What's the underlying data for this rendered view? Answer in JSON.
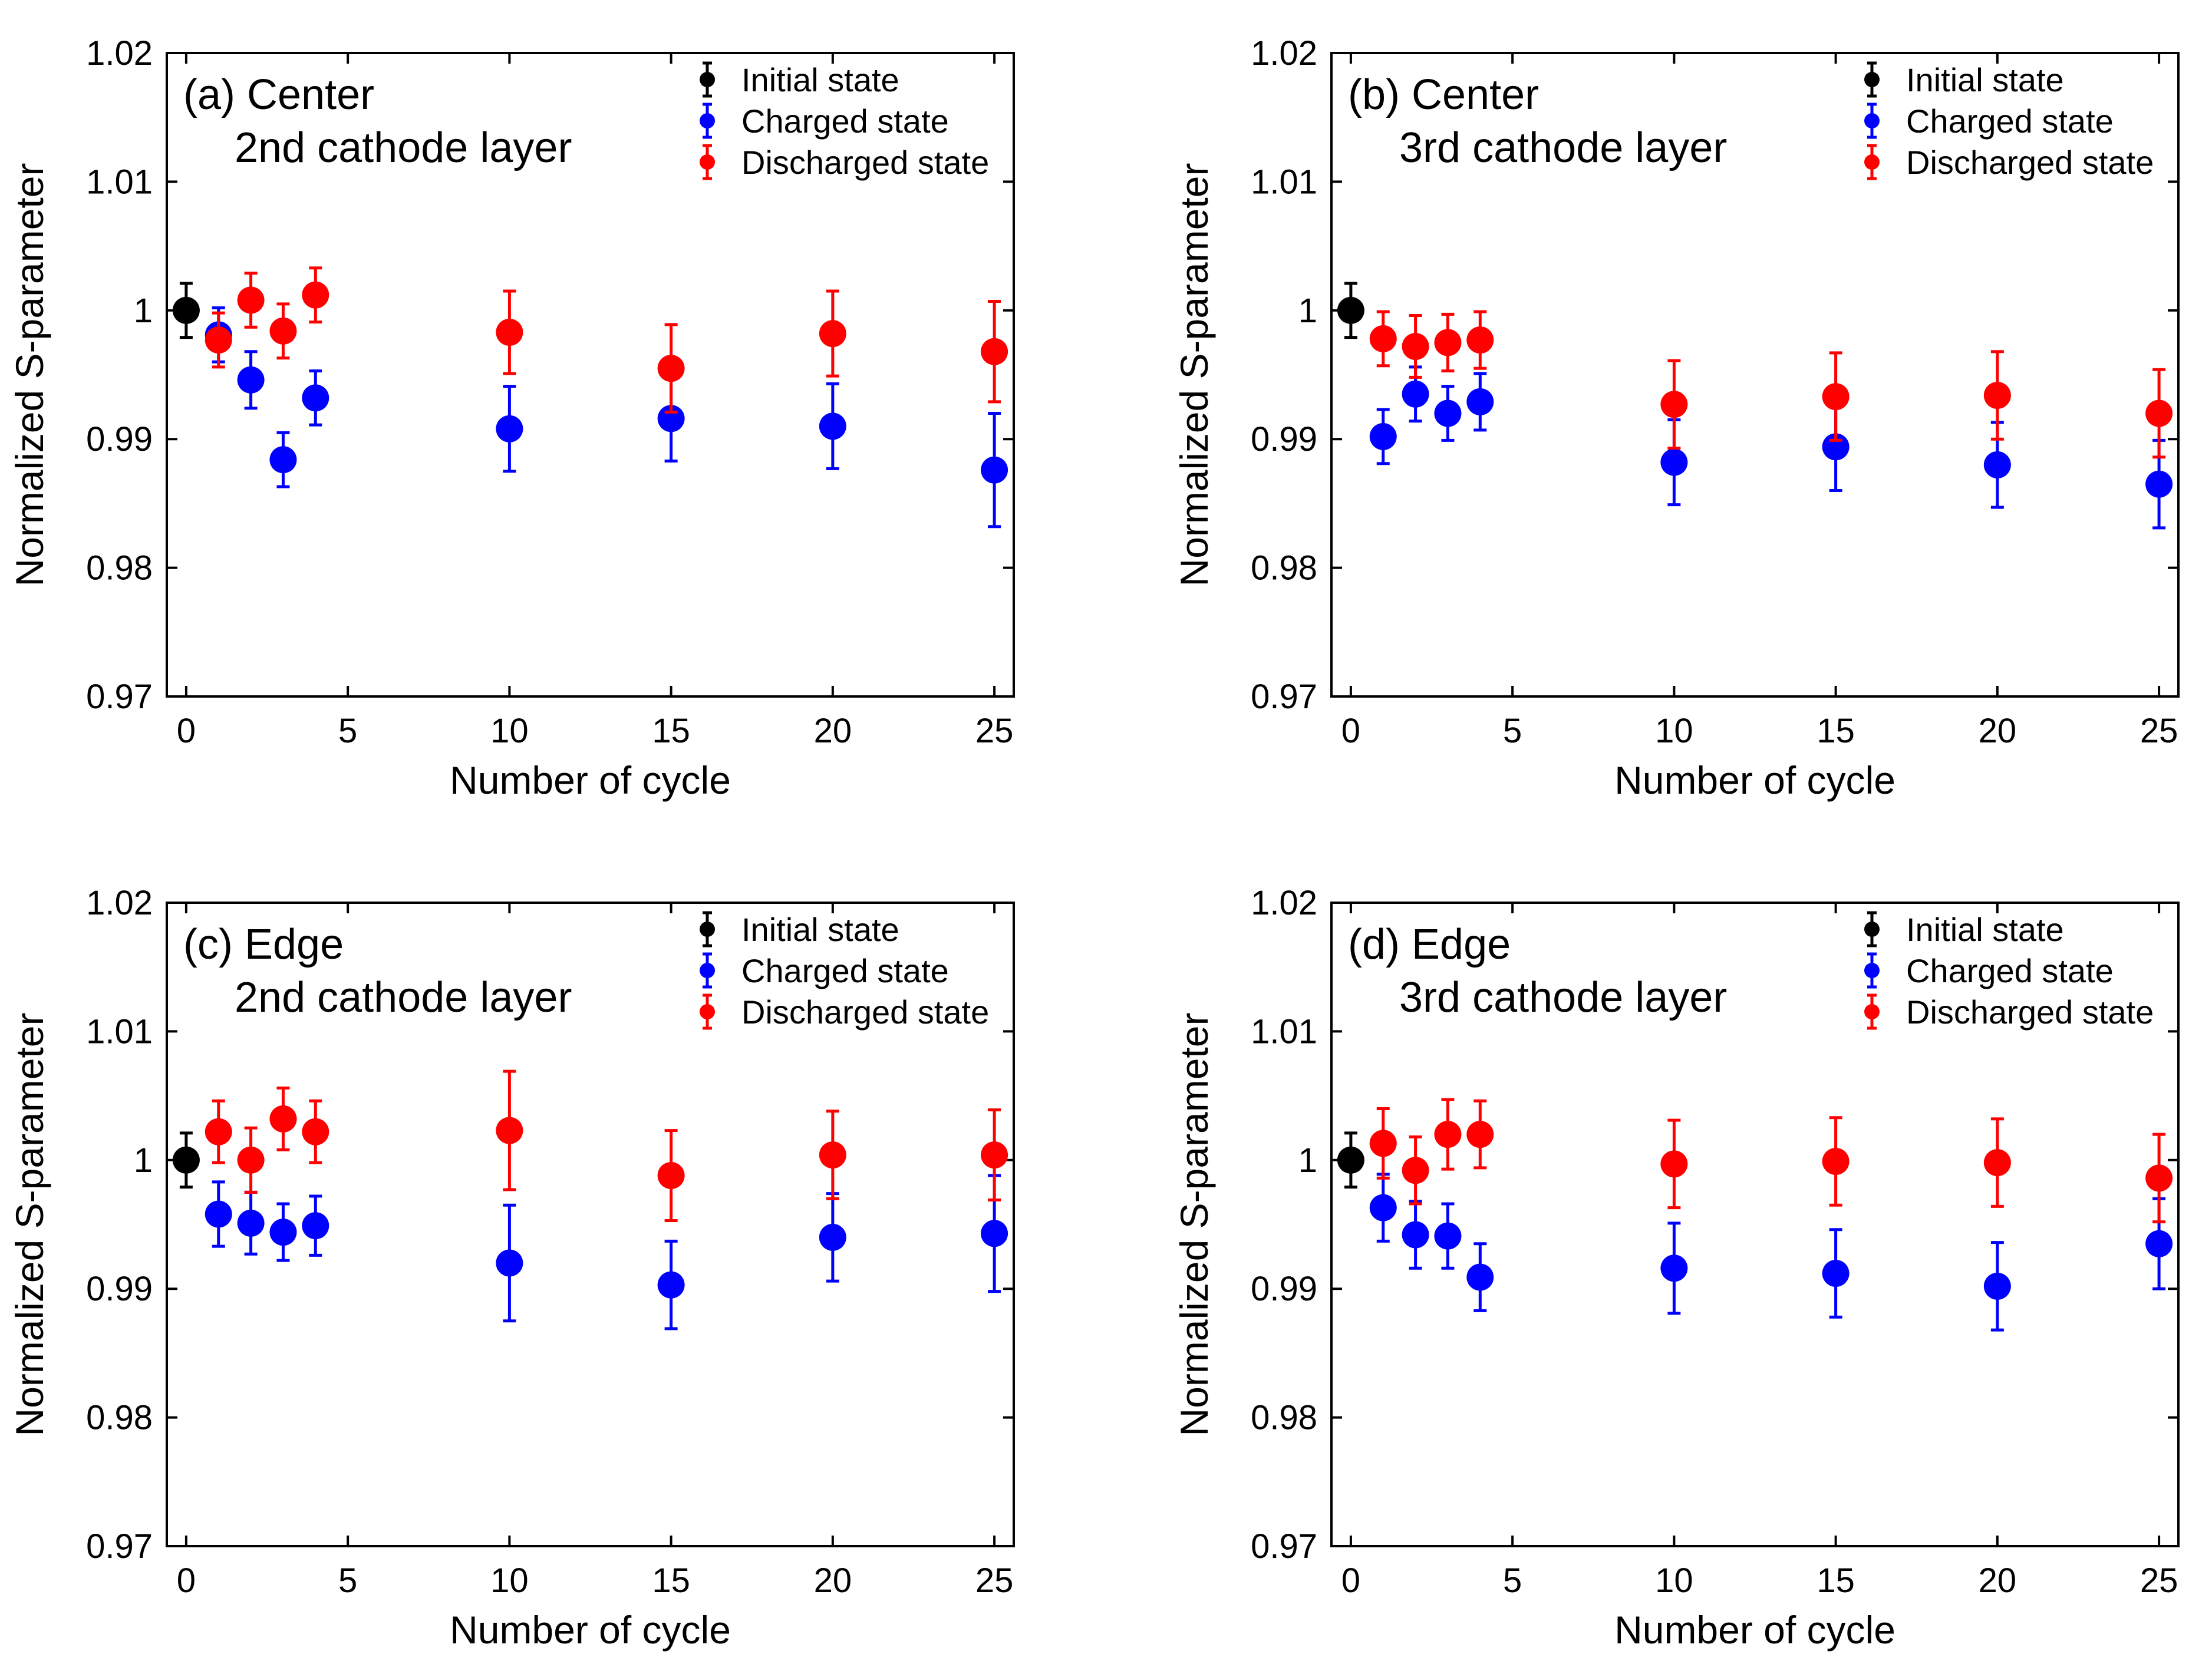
{
  "chart_data": [
    {
      "type": "scatter",
      "title_line1": "(a) Center",
      "title_line2": "2nd cathode layer",
      "xlabel": "Number of cycle",
      "ylabel": "Normalized S-parameter",
      "xlim": [
        -0.6,
        25.6
      ],
      "ylim": [
        0.97,
        1.02
      ],
      "xticks": [
        0,
        5,
        10,
        15,
        20,
        25
      ],
      "xtick_labels": [
        "0",
        "5",
        "10",
        "15",
        "20",
        "25"
      ],
      "yticks": [
        0.97,
        0.98,
        0.99,
        1.0,
        1.01,
        1.02
      ],
      "ytick_labels": [
        "0.97",
        "0.98",
        "0.99",
        "1",
        "1.01",
        "1.02"
      ],
      "legend_position": "top-right",
      "series": [
        {
          "name": "Initial state",
          "color": "#000000",
          "x": [
            0
          ],
          "y": [
            1.0
          ],
          "err": [
            0.0021
          ]
        },
        {
          "name": "Charged state",
          "color": "#0000ff",
          "x": [
            1,
            2,
            3,
            4,
            10,
            15,
            20,
            25
          ],
          "y": [
            0.9981,
            0.9946,
            0.9884,
            0.9932,
            0.9908,
            0.9916,
            0.991,
            0.9876
          ],
          "err": [
            0.0021,
            0.0022,
            0.0021,
            0.0021,
            0.0033,
            0.0033,
            0.0033,
            0.0044
          ]
        },
        {
          "name": "Discharged state",
          "color": "#ff0000",
          "x": [
            1,
            2,
            3,
            4,
            10,
            15,
            20,
            25
          ],
          "y": [
            0.9977,
            1.0008,
            0.9984,
            1.0012,
            0.9983,
            0.9955,
            0.9982,
            0.9968
          ],
          "err": [
            0.0021,
            0.0021,
            0.0021,
            0.0021,
            0.0032,
            0.0034,
            0.0033,
            0.0039
          ]
        }
      ]
    },
    {
      "type": "scatter",
      "title_line1": "(b) Center",
      "title_line2": "3rd cathode layer",
      "xlabel": "Number of cycle",
      "ylabel": "Normalized S-parameter",
      "xlim": [
        -0.6,
        25.6
      ],
      "ylim": [
        0.97,
        1.02
      ],
      "xticks": [
        0,
        5,
        10,
        15,
        20,
        25
      ],
      "xtick_labels": [
        "0",
        "5",
        "10",
        "15",
        "20",
        "25"
      ],
      "yticks": [
        0.97,
        0.98,
        0.99,
        1.0,
        1.01,
        1.02
      ],
      "ytick_labels": [
        "0.97",
        "0.98",
        "0.99",
        "1",
        "1.01",
        "1.02"
      ],
      "legend_position": "top-right",
      "series": [
        {
          "name": "Initial state",
          "color": "#000000",
          "x": [
            0
          ],
          "y": [
            1.0
          ],
          "err": [
            0.0021
          ]
        },
        {
          "name": "Charged state",
          "color": "#0000ff",
          "x": [
            1,
            2,
            3,
            4,
            10,
            15,
            20,
            25
          ],
          "y": [
            0.9902,
            0.9935,
            0.992,
            0.9929,
            0.9882,
            0.9894,
            0.988,
            0.9865
          ],
          "err": [
            0.0021,
            0.0021,
            0.0021,
            0.0022,
            0.0033,
            0.0034,
            0.0033,
            0.0034
          ]
        },
        {
          "name": "Discharged state",
          "color": "#ff0000",
          "x": [
            1,
            2,
            3,
            4,
            10,
            15,
            20,
            25
          ],
          "y": [
            0.9978,
            0.9972,
            0.9975,
            0.9977,
            0.9927,
            0.9933,
            0.9934,
            0.992
          ],
          "err": [
            0.0021,
            0.0024,
            0.0022,
            0.0022,
            0.0034,
            0.0034,
            0.0034,
            0.0034
          ]
        }
      ]
    },
    {
      "type": "scatter",
      "title_line1": "(c) Edge",
      "title_line2": "2nd cathode layer",
      "xlabel": "Number of cycle",
      "ylabel": "Normalized S-parameter",
      "xlim": [
        -0.6,
        25.6
      ],
      "ylim": [
        0.97,
        1.02
      ],
      "xticks": [
        0,
        5,
        10,
        15,
        20,
        25
      ],
      "xtick_labels": [
        "0",
        "5",
        "10",
        "15",
        "20",
        "25"
      ],
      "yticks": [
        0.97,
        0.98,
        0.99,
        1.0,
        1.01,
        1.02
      ],
      "ytick_labels": [
        "0.97",
        "0.98",
        "0.99",
        "1",
        "1.01",
        "1.02"
      ],
      "legend_position": "top-right",
      "series": [
        {
          "name": "Initial state",
          "color": "#000000",
          "x": [
            0
          ],
          "y": [
            1.0
          ],
          "err": [
            0.0021
          ]
        },
        {
          "name": "Charged state",
          "color": "#0000ff",
          "x": [
            1,
            2,
            3,
            4,
            10,
            15,
            20,
            25
          ],
          "y": [
            0.9958,
            0.9951,
            0.9944,
            0.9949,
            0.992,
            0.9903,
            0.994,
            0.9943
          ],
          "err": [
            0.0025,
            0.0024,
            0.0022,
            0.0023,
            0.0045,
            0.0034,
            0.0034,
            0.0045
          ]
        },
        {
          "name": "Discharged state",
          "color": "#ff0000",
          "x": [
            1,
            2,
            3,
            4,
            10,
            15,
            20,
            25
          ],
          "y": [
            1.0022,
            1.0,
            1.0032,
            1.0022,
            1.0023,
            0.9988,
            1.0004,
            1.0004
          ],
          "err": [
            0.0024,
            0.0025,
            0.0024,
            0.0024,
            0.0046,
            0.0035,
            0.0034,
            0.0035
          ]
        }
      ]
    },
    {
      "type": "scatter",
      "title_line1": "(d) Edge",
      "title_line2": "3rd cathode layer",
      "xlabel": "Number of cycle",
      "ylabel": "Normalized S-parameter",
      "xlim": [
        -0.6,
        25.6
      ],
      "ylim": [
        0.97,
        1.02
      ],
      "xticks": [
        0,
        5,
        10,
        15,
        20,
        25
      ],
      "xtick_labels": [
        "0",
        "5",
        "10",
        "15",
        "20",
        "25"
      ],
      "yticks": [
        0.97,
        0.98,
        0.99,
        1.0,
        1.01,
        1.02
      ],
      "ytick_labels": [
        "0.97",
        "0.98",
        "0.99",
        "1",
        "1.01",
        "1.02"
      ],
      "legend_position": "top-right",
      "series": [
        {
          "name": "Initial state",
          "color": "#000000",
          "x": [
            0
          ],
          "y": [
            1.0
          ],
          "err": [
            0.0021
          ]
        },
        {
          "name": "Charged state",
          "color": "#0000ff",
          "x": [
            1,
            2,
            3,
            4,
            10,
            15,
            20,
            25
          ],
          "y": [
            0.9963,
            0.9942,
            0.9941,
            0.9909,
            0.9916,
            0.9912,
            0.9902,
            0.9935
          ],
          "err": [
            0.0026,
            0.0026,
            0.0025,
            0.0026,
            0.0035,
            0.0034,
            0.0034,
            0.0035
          ]
        },
        {
          "name": "Discharged state",
          "color": "#ff0000",
          "x": [
            1,
            2,
            3,
            4,
            10,
            15,
            20,
            25
          ],
          "y": [
            1.0013,
            0.9992,
            1.002,
            1.002,
            0.9997,
            0.9999,
            0.9998,
            0.9986
          ],
          "err": [
            0.0027,
            0.0026,
            0.0027,
            0.0026,
            0.0034,
            0.0034,
            0.0034,
            0.0034
          ]
        }
      ]
    }
  ]
}
